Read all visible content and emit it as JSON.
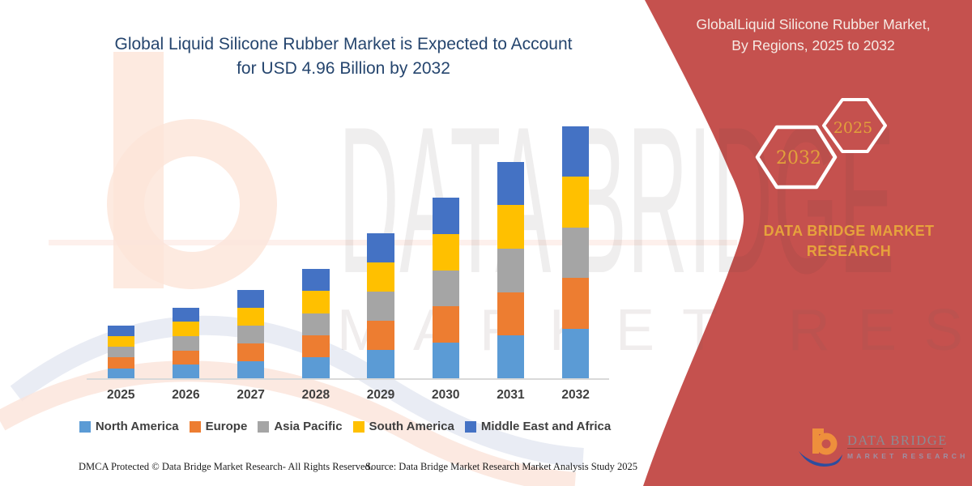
{
  "chart_header": {
    "line1": "Global Liquid Silicone Rubber Market is Expected to Account",
    "line2": "for USD 4.96 Billion by 2032"
  },
  "chart_data": {
    "type": "bar",
    "stacked": true,
    "title": "Global Liquid Silicone Rubber Market is Expected to Account for USD 4.96 Billion by 2032",
    "unit": "USD Billion (estimated from bar heights; 2032 total anchored to 4.96)",
    "categories": [
      "2025",
      "2026",
      "2027",
      "2028",
      "2029",
      "2030",
      "2031",
      "2032"
    ],
    "series": [
      {
        "name": "North America",
        "color": "#5B9BD5",
        "values": [
          0.21,
          0.28,
          0.35,
          0.43,
          0.57,
          0.71,
          0.85,
          0.99
        ]
      },
      {
        "name": "Europe",
        "color": "#ED7D31",
        "values": [
          0.21,
          0.28,
          0.35,
          0.43,
          0.57,
          0.71,
          0.85,
          0.99
        ]
      },
      {
        "name": "Asia Pacific",
        "color": "#A5A5A5",
        "values": [
          0.21,
          0.28,
          0.35,
          0.43,
          0.57,
          0.71,
          0.85,
          0.99
        ]
      },
      {
        "name": "South America",
        "color": "#FFC000",
        "values": [
          0.21,
          0.28,
          0.35,
          0.43,
          0.57,
          0.71,
          0.85,
          0.99
        ]
      },
      {
        "name": "Middle East and Africa",
        "color": "#4472C4",
        "values": [
          0.21,
          0.28,
          0.35,
          0.43,
          0.57,
          0.71,
          0.85,
          0.99
        ]
      }
    ],
    "totals": [
      1.06,
      1.42,
      1.77,
      2.13,
      2.84,
      3.55,
      4.25,
      4.96
    ],
    "ylim": [
      0,
      5.2
    ],
    "grid": false,
    "legend_position": "bottom"
  },
  "panel": {
    "background": "#C5514E",
    "gold": "#E6A23C",
    "title_line1": "GlobalLiquid Silicone Rubber Market,",
    "title_line2": "By Regions, 2025 to 2032",
    "hexagon_large_label": "2032",
    "hexagon_small_label": "2025",
    "brand_line1": "DATA BRIDGE MARKET",
    "brand_line2": "RESEARCH"
  },
  "logo": {
    "name": "DATA BRIDGE",
    "tagline": "MARKET RESEARCH"
  },
  "watermark": {
    "line1": "DATA BRIDGE",
    "line2": "MARKET RESEARCH"
  },
  "footer": {
    "left": "DMCA Protected © Data Bridge Market Research- All Rights Reserved.",
    "source": "Source: Data Bridge Market Research Market Analysis Study 2025"
  }
}
